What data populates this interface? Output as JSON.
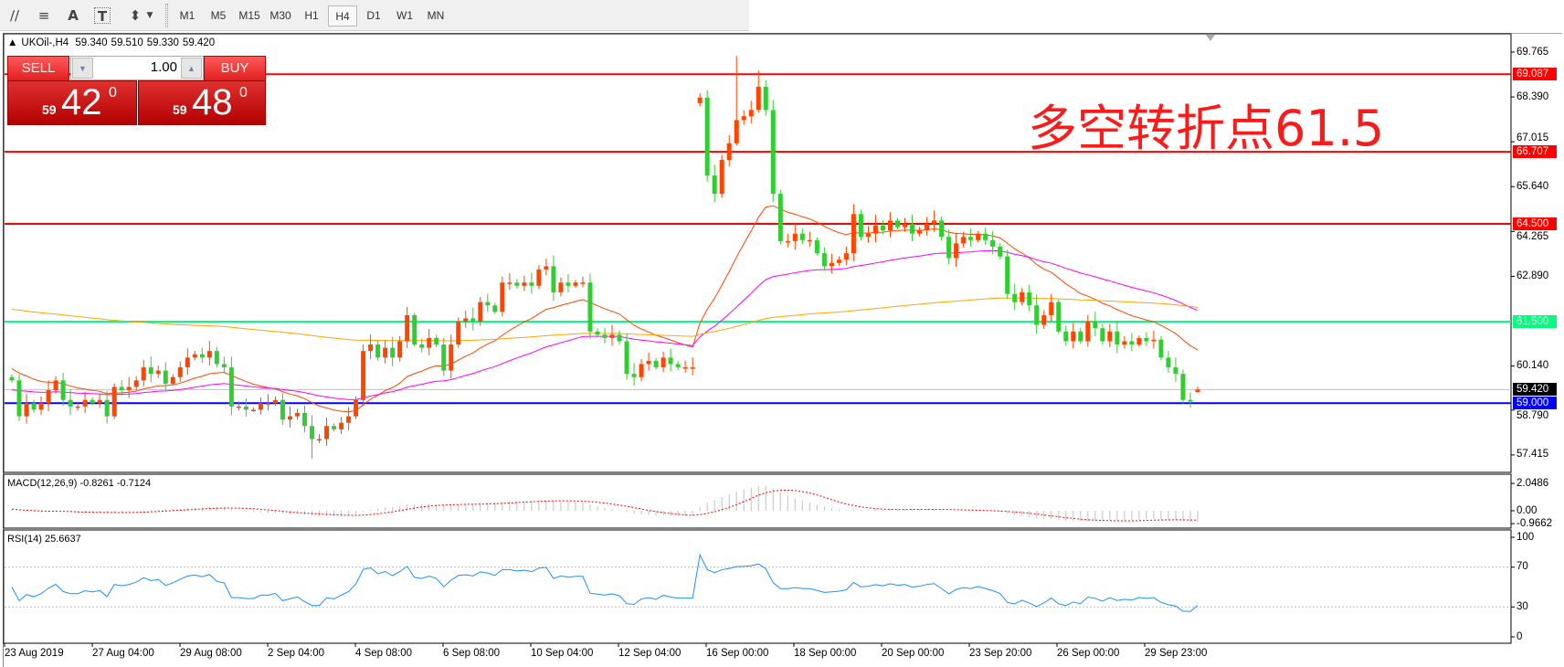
{
  "toolbar": {
    "icons": [
      "gann-fan-icon",
      "fibonacci-icon",
      "text-icon",
      "text-label-icon",
      "arrows-icon"
    ],
    "icon_glyphs": [
      "∕∕",
      "≡",
      "A",
      "T",
      "⬍"
    ],
    "timeframes": [
      "M1",
      "M5",
      "M15",
      "M30",
      "H1",
      "H4",
      "D1",
      "W1",
      "MN"
    ],
    "selected": "H4"
  },
  "chart": {
    "symbol": "UKOil-,H4",
    "ohlc": [
      "59.340",
      "59.510",
      "59.330",
      "59.420"
    ],
    "one_click": {
      "sell_label": "SELL",
      "buy_label": "BUY",
      "lot": "1.00",
      "sell_price": {
        "small": "59",
        "big": "42",
        "sup": "0"
      },
      "buy_price": {
        "small": "59",
        "big": "48",
        "sup": "0"
      }
    },
    "annotation": "多空转折点61.5",
    "price_axis": [
      "69.765",
      "68.390",
      "67.015",
      "65.640",
      "64.265",
      "62.890",
      "60.140",
      "58.790",
      "57.415"
    ],
    "levels": [
      {
        "value": 69.087,
        "label": "69.087",
        "color": "#ff0000"
      },
      {
        "value": 66.707,
        "label": "66.707",
        "color": "#ff0000"
      },
      {
        "value": 64.5,
        "label": "64.500",
        "color": "#ff0000"
      },
      {
        "value": 61.5,
        "label": "61.500",
        "color": "#00ff7f"
      },
      {
        "value": 59.42,
        "label": "59.420",
        "color": "#000000",
        "line": "#c0c0c0"
      },
      {
        "value": 59.0,
        "label": "59.000",
        "color": "#0000ff"
      }
    ],
    "colors": {
      "bull": "#ff4500",
      "bear": "#32cd32",
      "ma_fast": "#ff4500",
      "ma_mid": "#ff00ff",
      "ma_slow": "#ffa500"
    }
  },
  "chart_data": {
    "type": "candlestick",
    "closes": [
      59.7,
      58.6,
      59.0,
      58.8,
      59.0,
      59.4,
      59.7,
      59.1,
      58.9,
      58.9,
      59.1,
      59.0,
      59.1,
      58.6,
      59.5,
      59.4,
      59.5,
      59.7,
      60.1,
      59.9,
      60.0,
      59.6,
      59.8,
      60.1,
      60.4,
      60.5,
      60.4,
      60.6,
      60.2,
      60.1,
      58.9,
      58.9,
      58.8,
      58.8,
      59.0,
      59.0,
      59.1,
      58.5,
      58.6,
      58.7,
      58.3,
      57.9,
      57.9,
      58.3,
      58.2,
      58.4,
      58.6,
      59.1,
      60.6,
      60.8,
      60.4,
      60.7,
      60.4,
      60.9,
      61.7,
      60.8,
      60.7,
      61.0,
      60.8,
      60.0,
      60.8,
      61.5,
      61.6,
      61.5,
      62.1,
      62.0,
      61.8,
      62.7,
      62.7,
      62.6,
      62.7,
      62.6,
      63.1,
      63.2,
      62.4,
      62.7,
      62.6,
      62.7,
      62.7,
      61.2,
      61.1,
      61.0,
      61.1,
      60.9,
      59.9,
      59.8,
      60.2,
      60.3,
      60.1,
      60.4,
      60.2,
      60.1,
      60.1,
      60.1,
      68.37,
      65.98,
      65.42,
      66.46,
      66.97,
      67.68,
      67.8,
      67.99,
      68.7,
      67.99,
      65.42,
      63.97,
      63.97,
      64.2,
      64.0,
      64.0,
      63.6,
      63.2,
      63.3,
      63.4,
      63.6,
      64.8,
      64.1,
      64.2,
      64.45,
      64.3,
      64.6,
      64.4,
      64.5,
      64.2,
      64.3,
      64.5,
      64.6,
      64.1,
      63.45,
      63.9,
      64.1,
      64.0,
      64.2,
      64.0,
      63.8,
      63.5,
      62.35,
      62.1,
      62.4,
      62.0,
      61.4,
      61.7,
      62.1,
      61.2,
      60.9,
      61.2,
      60.9,
      61.5,
      61.3,
      60.9,
      61.2,
      60.8,
      60.9,
      60.8,
      61.0,
      60.9,
      60.95,
      60.4,
      60.1,
      59.9,
      59.1,
      59.05,
      59.42
    ],
    "open_overrides": {
      "94": 68.2,
      "162": 59.34
    },
    "high_overrides": {
      "99": 69.65,
      "102": 69.2,
      "162": 59.51
    },
    "low_overrides": {
      "41": 57.3,
      "162": 59.33
    },
    "ylim": [
      57.0,
      69.9
    ],
    "x_tick_labels": [
      "23 Aug 2019",
      "27 Aug 04:00",
      "29 Aug 08:00",
      "2 Sep 04:00",
      "4 Sep 08:00",
      "6 Sep 08:00",
      "10 Sep 04:00",
      "12 Sep 04:00",
      "16 Sep 00:00",
      "18 Sep 00:00",
      "20 Sep 00:00",
      "23 Sep 20:00",
      "26 Sep 00:00",
      "29 Sep 23:00"
    ]
  },
  "macd": {
    "title": "MACD(12,26,9) -0.8261 -0.7124",
    "axis": [
      "2.0486",
      "0.00",
      "-0.9662"
    ]
  },
  "rsi": {
    "title": "RSI(14) 25.6637",
    "axis": [
      "100",
      "70",
      "30",
      "0"
    ]
  }
}
